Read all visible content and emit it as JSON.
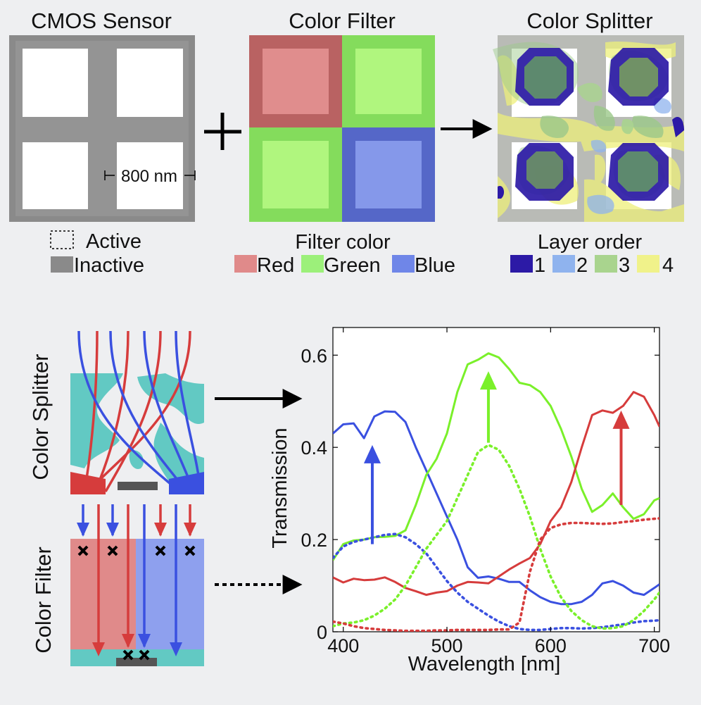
{
  "panels": {
    "cmos": {
      "title": "CMOS Sensor",
      "scale_label": "800 nm",
      "legend": [
        {
          "label": "Active",
          "swatch": "dashed-outline"
        },
        {
          "label": "Inactive",
          "color": "#8a8a8a"
        }
      ]
    },
    "filter": {
      "title": "Color Filter",
      "legend_title": "Filter color",
      "legend": [
        {
          "label": "Red",
          "color": "#e08a8a"
        },
        {
          "label": "Green",
          "color": "#9cf07a"
        },
        {
          "label": "Blue",
          "color": "#6f86e8"
        }
      ]
    },
    "splitter": {
      "title": "Color Splitter",
      "legend_title": "Layer order",
      "legend": [
        {
          "label": "1",
          "color": "#2c1aa6"
        },
        {
          "label": "2",
          "color": "#8fb3ee"
        },
        {
          "label": "3",
          "color": "#a9d48e"
        },
        {
          "label": "4",
          "color": "#f0f28a"
        }
      ]
    },
    "operators": {
      "plus": "+"
    },
    "side_labels": {
      "splitter": "Color Splitter",
      "filter": "Color Filter"
    }
  },
  "colors": {
    "red": "#d63c3c",
    "green": "#7af02a",
    "blue": "#3a50e0",
    "teal": "#62c9c3",
    "gray": "#8a8a8a"
  },
  "chart_data": {
    "type": "line",
    "title": "",
    "xlabel": "Wavelength [nm]",
    "ylabel": "Transmission",
    "xlim": [
      390,
      705
    ],
    "ylim": [
      0,
      0.66
    ],
    "xticks": [
      400,
      500,
      600,
      700
    ],
    "yticks": [
      0,
      0.2,
      0.4,
      0.6
    ],
    "ytick_labels": [
      "0",
      "0.2",
      "0.4",
      "0.6"
    ],
    "grid": false,
    "series": [
      {
        "color": "blue",
        "style": "solid",
        "points": [
          [
            390,
            0.43
          ],
          [
            400,
            0.45
          ],
          [
            410,
            0.452
          ],
          [
            420,
            0.42
          ],
          [
            430,
            0.467
          ],
          [
            440,
            0.478
          ],
          [
            450,
            0.477
          ],
          [
            460,
            0.455
          ],
          [
            470,
            0.4
          ],
          [
            480,
            0.35
          ],
          [
            490,
            0.3
          ],
          [
            500,
            0.25
          ],
          [
            510,
            0.2
          ],
          [
            520,
            0.14
          ],
          [
            530,
            0.117
          ],
          [
            540,
            0.12
          ],
          [
            550,
            0.115
          ],
          [
            560,
            0.108
          ],
          [
            570,
            0.108
          ],
          [
            580,
            0.09
          ],
          [
            590,
            0.075
          ],
          [
            600,
            0.065
          ],
          [
            610,
            0.06
          ],
          [
            620,
            0.06
          ],
          [
            630,
            0.065
          ],
          [
            640,
            0.08
          ],
          [
            650,
            0.105
          ],
          [
            660,
            0.11
          ],
          [
            670,
            0.1
          ],
          [
            680,
            0.085
          ],
          [
            690,
            0.08
          ],
          [
            700,
            0.095
          ],
          [
            705,
            0.103
          ]
        ]
      },
      {
        "color": "green",
        "style": "solid",
        "points": [
          [
            390,
            0.155
          ],
          [
            400,
            0.19
          ],
          [
            410,
            0.198
          ],
          [
            420,
            0.2
          ],
          [
            430,
            0.205
          ],
          [
            440,
            0.206
          ],
          [
            450,
            0.208
          ],
          [
            460,
            0.22
          ],
          [
            470,
            0.275
          ],
          [
            480,
            0.34
          ],
          [
            490,
            0.375
          ],
          [
            500,
            0.43
          ],
          [
            510,
            0.52
          ],
          [
            520,
            0.58
          ],
          [
            530,
            0.59
          ],
          [
            540,
            0.604
          ],
          [
            550,
            0.595
          ],
          [
            560,
            0.57
          ],
          [
            570,
            0.54
          ],
          [
            580,
            0.535
          ],
          [
            590,
            0.52
          ],
          [
            600,
            0.49
          ],
          [
            610,
            0.44
          ],
          [
            620,
            0.38
          ],
          [
            630,
            0.31
          ],
          [
            640,
            0.26
          ],
          [
            650,
            0.275
          ],
          [
            660,
            0.3
          ],
          [
            670,
            0.27
          ],
          [
            680,
            0.245
          ],
          [
            690,
            0.255
          ],
          [
            700,
            0.285
          ],
          [
            705,
            0.29
          ]
        ]
      },
      {
        "color": "red",
        "style": "solid",
        "points": [
          [
            390,
            0.118
          ],
          [
            400,
            0.107
          ],
          [
            410,
            0.115
          ],
          [
            420,
            0.112
          ],
          [
            430,
            0.113
          ],
          [
            440,
            0.118
          ],
          [
            450,
            0.108
          ],
          [
            460,
            0.095
          ],
          [
            470,
            0.088
          ],
          [
            480,
            0.08
          ],
          [
            490,
            0.085
          ],
          [
            500,
            0.088
          ],
          [
            510,
            0.1
          ],
          [
            520,
            0.108
          ],
          [
            530,
            0.107
          ],
          [
            540,
            0.105
          ],
          [
            550,
            0.12
          ],
          [
            560,
            0.135
          ],
          [
            570,
            0.148
          ],
          [
            580,
            0.16
          ],
          [
            590,
            0.19
          ],
          [
            600,
            0.24
          ],
          [
            610,
            0.27
          ],
          [
            620,
            0.325
          ],
          [
            630,
            0.4
          ],
          [
            640,
            0.47
          ],
          [
            650,
            0.48
          ],
          [
            660,
            0.475
          ],
          [
            670,
            0.49
          ],
          [
            680,
            0.52
          ],
          [
            690,
            0.51
          ],
          [
            700,
            0.47
          ],
          [
            705,
            0.445
          ]
        ]
      },
      {
        "color": "blue",
        "style": "dotted",
        "points": [
          [
            390,
            0.16
          ],
          [
            400,
            0.185
          ],
          [
            410,
            0.195
          ],
          [
            420,
            0.2
          ],
          [
            430,
            0.205
          ],
          [
            440,
            0.21
          ],
          [
            450,
            0.212
          ],
          [
            460,
            0.205
          ],
          [
            470,
            0.19
          ],
          [
            480,
            0.17
          ],
          [
            490,
            0.14
          ],
          [
            500,
            0.11
          ],
          [
            510,
            0.085
          ],
          [
            520,
            0.065
          ],
          [
            530,
            0.05
          ],
          [
            540,
            0.035
          ],
          [
            550,
            0.022
          ],
          [
            560,
            0.012
          ],
          [
            570,
            0.006
          ],
          [
            580,
            0.004
          ],
          [
            590,
            0.004
          ],
          [
            600,
            0.006
          ],
          [
            610,
            0.008
          ],
          [
            620,
            0.008
          ],
          [
            630,
            0.007
          ],
          [
            640,
            0.008
          ],
          [
            650,
            0.01
          ],
          [
            660,
            0.013
          ],
          [
            670,
            0.016
          ],
          [
            680,
            0.02
          ],
          [
            690,
            0.023
          ],
          [
            700,
            0.024
          ],
          [
            705,
            0.025
          ]
        ]
      },
      {
        "color": "green",
        "style": "dotted",
        "points": [
          [
            390,
            0.012
          ],
          [
            400,
            0.018
          ],
          [
            410,
            0.02
          ],
          [
            420,
            0.025
          ],
          [
            430,
            0.035
          ],
          [
            440,
            0.05
          ],
          [
            450,
            0.07
          ],
          [
            460,
            0.1
          ],
          [
            470,
            0.14
          ],
          [
            480,
            0.18
          ],
          [
            490,
            0.21
          ],
          [
            500,
            0.24
          ],
          [
            510,
            0.29
          ],
          [
            520,
            0.34
          ],
          [
            530,
            0.39
          ],
          [
            540,
            0.405
          ],
          [
            550,
            0.395
          ],
          [
            560,
            0.36
          ],
          [
            570,
            0.31
          ],
          [
            580,
            0.25
          ],
          [
            590,
            0.18
          ],
          [
            600,
            0.12
          ],
          [
            610,
            0.075
          ],
          [
            620,
            0.045
          ],
          [
            630,
            0.025
          ],
          [
            640,
            0.012
          ],
          [
            650,
            0.007
          ],
          [
            660,
            0.008
          ],
          [
            670,
            0.012
          ],
          [
            680,
            0.025
          ],
          [
            690,
            0.045
          ],
          [
            700,
            0.07
          ],
          [
            705,
            0.085
          ]
        ]
      },
      {
        "color": "red",
        "style": "dotted",
        "points": [
          [
            390,
            0.022
          ],
          [
            400,
            0.018
          ],
          [
            410,
            0.012
          ],
          [
            420,
            0.008
          ],
          [
            430,
            0.006
          ],
          [
            440,
            0.004
          ],
          [
            450,
            0.003
          ],
          [
            460,
            0.002
          ],
          [
            470,
            0.002
          ],
          [
            480,
            0.002
          ],
          [
            490,
            0.003
          ],
          [
            500,
            0.003
          ],
          [
            510,
            0.004
          ],
          [
            520,
            0.004
          ],
          [
            530,
            0.004
          ],
          [
            540,
            0.004
          ],
          [
            550,
            0.005
          ],
          [
            560,
            0.005
          ],
          [
            570,
            0.02
          ],
          [
            580,
            0.13
          ],
          [
            590,
            0.2
          ],
          [
            600,
            0.225
          ],
          [
            610,
            0.233
          ],
          [
            620,
            0.236
          ],
          [
            630,
            0.236
          ],
          [
            640,
            0.235
          ],
          [
            650,
            0.234
          ],
          [
            660,
            0.235
          ],
          [
            670,
            0.238
          ],
          [
            680,
            0.24
          ],
          [
            690,
            0.243
          ],
          [
            700,
            0.245
          ],
          [
            705,
            0.246
          ]
        ]
      }
    ],
    "arrows": [
      {
        "color": "blue",
        "x": 428,
        "from": 0.19,
        "to": 0.405
      },
      {
        "color": "green",
        "x": 540,
        "from": 0.41,
        "to": 0.565
      },
      {
        "color": "red",
        "x": 668,
        "from": 0.275,
        "to": 0.48
      }
    ]
  }
}
